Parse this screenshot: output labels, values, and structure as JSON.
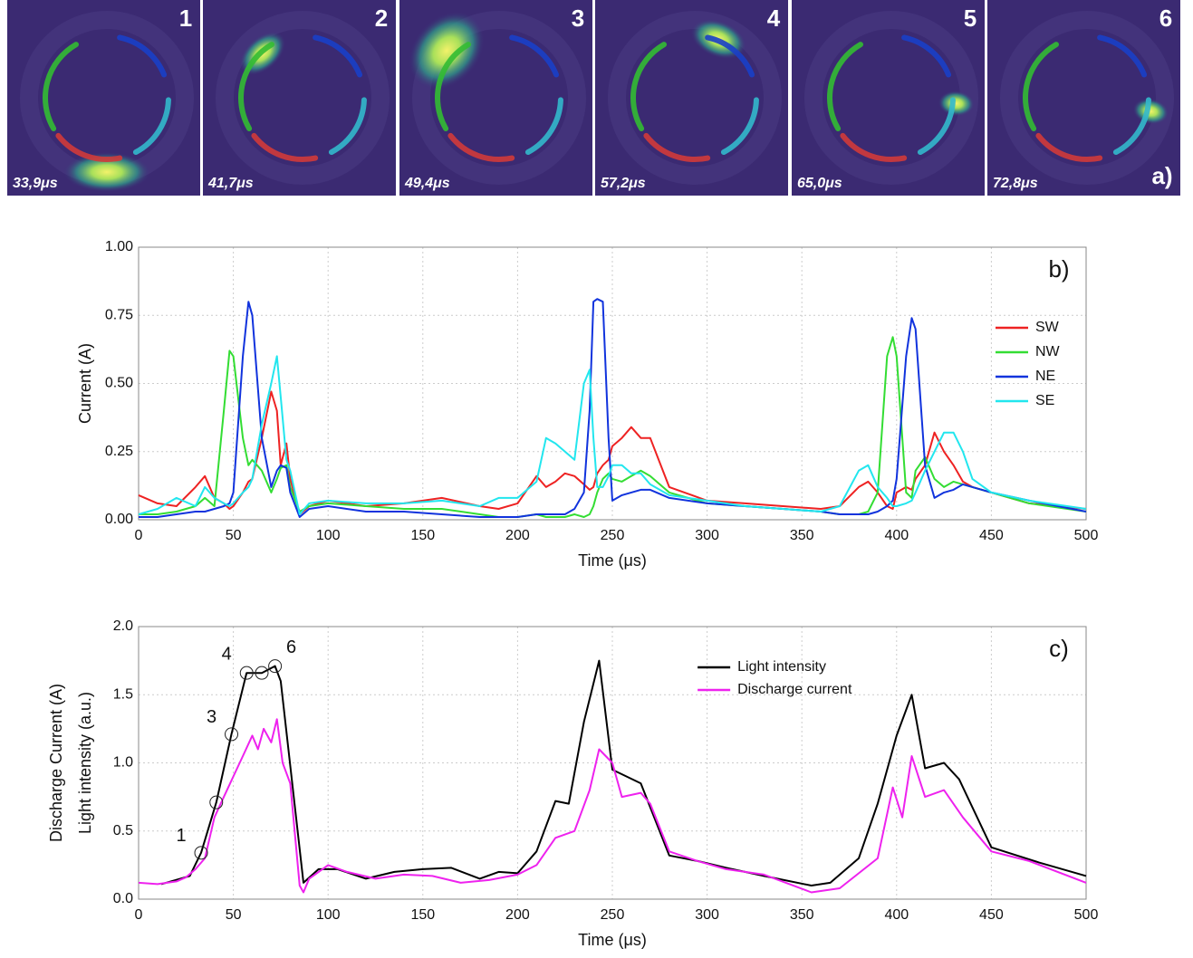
{
  "frames": {
    "label": "a)",
    "items": [
      {
        "number": "1",
        "time": "33,9μs"
      },
      {
        "number": "2",
        "time": "41,7μs"
      },
      {
        "number": "3",
        "time": "49,4μs"
      },
      {
        "number": "4",
        "time": "57,2μs"
      },
      {
        "number": "5",
        "time": "65,0μs"
      },
      {
        "number": "6",
        "time": "72,8μs"
      }
    ]
  },
  "chart_data": [
    {
      "type": "line",
      "label": "b)",
      "x_label": "Time (μs)",
      "y_label": "Current (A)",
      "xlim": [
        0,
        500
      ],
      "xticks": [
        0,
        50,
        100,
        150,
        200,
        250,
        300,
        350,
        400,
        450,
        500
      ],
      "ylim": [
        0,
        1
      ],
      "yticks": [
        {
          "value": 0,
          "label": "0.00"
        },
        {
          "value": 0.25,
          "label": "0.25"
        },
        {
          "value": 0.5,
          "label": "0.50"
        },
        {
          "value": 0.75,
          "label": "0.75"
        },
        {
          "value": 1,
          "label": "1.00"
        }
      ],
      "grid": true,
      "legend": "upper right",
      "x": [
        0,
        10,
        20,
        30,
        35,
        40,
        45,
        48,
        50,
        55,
        58,
        60,
        65,
        70,
        73,
        75,
        78,
        80,
        85,
        90,
        100,
        120,
        140,
        160,
        180,
        190,
        200,
        210,
        215,
        220,
        225,
        230,
        235,
        238,
        240,
        242,
        245,
        248,
        250,
        255,
        260,
        265,
        270,
        280,
        300,
        320,
        340,
        360,
        370,
        380,
        385,
        390,
        395,
        398,
        400,
        405,
        408,
        410,
        415,
        420,
        425,
        430,
        435,
        440,
        450,
        470,
        500
      ],
      "series": [
        {
          "name": "SW",
          "color": "#ee2222",
          "values": [
            0.09,
            0.06,
            0.05,
            0.12,
            0.16,
            0.08,
            0.06,
            0.04,
            0.05,
            0.1,
            0.14,
            0.15,
            0.3,
            0.47,
            0.4,
            0.2,
            0.28,
            0.15,
            0.02,
            0.05,
            0.07,
            0.05,
            0.06,
            0.08,
            0.05,
            0.04,
            0.06,
            0.16,
            0.12,
            0.14,
            0.17,
            0.16,
            0.13,
            0.11,
            0.12,
            0.17,
            0.2,
            0.22,
            0.27,
            0.3,
            0.34,
            0.3,
            0.3,
            0.12,
            0.07,
            0.06,
            0.05,
            0.04,
            0.05,
            0.12,
            0.14,
            0.1,
            0.05,
            0.04,
            0.1,
            0.12,
            0.11,
            0.15,
            0.2,
            0.32,
            0.25,
            0.2,
            0.14,
            0.12,
            0.1,
            0.06,
            0.04
          ]
        },
        {
          "name": "NW",
          "color": "#33dd33",
          "values": [
            0.02,
            0.02,
            0.03,
            0.05,
            0.08,
            0.05,
            0.4,
            0.62,
            0.6,
            0.3,
            0.2,
            0.22,
            0.18,
            0.1,
            0.15,
            0.19,
            0.2,
            0.12,
            0.03,
            0.05,
            0.06,
            0.05,
            0.04,
            0.04,
            0.02,
            0.01,
            0.01,
            0.02,
            0.01,
            0.01,
            0.01,
            0.02,
            0.01,
            0.02,
            0.05,
            0.1,
            0.15,
            0.17,
            0.15,
            0.14,
            0.16,
            0.18,
            0.16,
            0.1,
            0.06,
            0.05,
            0.04,
            0.03,
            0.02,
            0.02,
            0.03,
            0.1,
            0.6,
            0.67,
            0.6,
            0.1,
            0.08,
            0.18,
            0.23,
            0.15,
            0.12,
            0.14,
            0.13,
            0.12,
            0.1,
            0.06,
            0.03
          ]
        },
        {
          "name": "NE",
          "color": "#1133dd",
          "values": [
            0.01,
            0.01,
            0.02,
            0.03,
            0.03,
            0.04,
            0.05,
            0.06,
            0.1,
            0.6,
            0.8,
            0.75,
            0.3,
            0.12,
            0.18,
            0.2,
            0.19,
            0.1,
            0.01,
            0.04,
            0.05,
            0.03,
            0.03,
            0.02,
            0.01,
            0.01,
            0.01,
            0.02,
            0.02,
            0.02,
            0.02,
            0.04,
            0.1,
            0.4,
            0.8,
            0.81,
            0.8,
            0.3,
            0.07,
            0.09,
            0.1,
            0.11,
            0.11,
            0.08,
            0.06,
            0.05,
            0.04,
            0.03,
            0.02,
            0.02,
            0.02,
            0.03,
            0.05,
            0.07,
            0.15,
            0.6,
            0.74,
            0.7,
            0.2,
            0.08,
            0.1,
            0.11,
            0.13,
            0.12,
            0.1,
            0.07,
            0.03
          ]
        },
        {
          "name": "SE",
          "color": "#22e6ee",
          "values": [
            0.02,
            0.04,
            0.08,
            0.05,
            0.12,
            0.08,
            0.06,
            0.05,
            0.06,
            0.1,
            0.12,
            0.15,
            0.35,
            0.5,
            0.6,
            0.45,
            0.22,
            0.18,
            0.02,
            0.06,
            0.07,
            0.06,
            0.06,
            0.07,
            0.05,
            0.08,
            0.08,
            0.14,
            0.3,
            0.28,
            0.25,
            0.22,
            0.5,
            0.55,
            0.3,
            0.12,
            0.12,
            0.16,
            0.2,
            0.2,
            0.17,
            0.17,
            0.13,
            0.09,
            0.07,
            0.05,
            0.04,
            0.03,
            0.05,
            0.18,
            0.2,
            0.12,
            0.08,
            0.05,
            0.05,
            0.06,
            0.07,
            0.1,
            0.18,
            0.25,
            0.32,
            0.32,
            0.25,
            0.15,
            0.1,
            0.07,
            0.04
          ]
        }
      ]
    },
    {
      "type": "line",
      "label": "c)",
      "x_label": "Time (μs)",
      "y_label": [
        "Discharge Current (A)",
        "Light intensity (a.u.)"
      ],
      "xlim": [
        0,
        500
      ],
      "xticks": [
        0,
        50,
        100,
        150,
        200,
        250,
        300,
        350,
        400,
        450,
        500
      ],
      "ylim": [
        0,
        2
      ],
      "yticks": [
        {
          "value": 0,
          "label": "0.0"
        },
        {
          "value": 0.5,
          "label": "0.5"
        },
        {
          "value": 1,
          "label": "1.0"
        },
        {
          "value": 1.5,
          "label": "1.5"
        },
        {
          "value": 2,
          "label": "2.0"
        }
      ],
      "grid": true,
      "legend": "upper center",
      "series": [
        {
          "name": "Light intensity",
          "color": "#000000",
          "x": [
            12,
            27,
            33,
            41,
            49,
            57,
            65,
            72,
            75,
            87,
            95,
            105,
            120,
            135,
            150,
            165,
            180,
            190,
            200,
            210,
            220,
            227,
            235,
            243,
            250,
            265,
            280,
            295,
            310,
            330,
            355,
            365,
            380,
            390,
            400,
            408,
            415,
            425,
            433,
            450,
            475,
            500
          ],
          "values": [
            0.11,
            0.17,
            0.34,
            0.71,
            1.21,
            1.66,
            1.66,
            1.71,
            1.6,
            0.12,
            0.22,
            0.22,
            0.15,
            0.2,
            0.22,
            0.23,
            0.15,
            0.2,
            0.19,
            0.35,
            0.72,
            0.7,
            1.3,
            1.75,
            0.95,
            0.85,
            0.32,
            0.28,
            0.23,
            0.17,
            0.1,
            0.12,
            0.3,
            0.7,
            1.2,
            1.5,
            0.96,
            1.0,
            0.88,
            0.38,
            0.27,
            0.17
          ]
        },
        {
          "name": "Discharge current",
          "color": "#ee22ee",
          "x": [
            0,
            10,
            20,
            25,
            30,
            35,
            40,
            45,
            50,
            55,
            60,
            63,
            66,
            70,
            73,
            76,
            80,
            85,
            87,
            90,
            100,
            110,
            125,
            140,
            155,
            170,
            185,
            200,
            210,
            220,
            230,
            238,
            243,
            250,
            255,
            265,
            270,
            280,
            295,
            310,
            330,
            355,
            370,
            390,
            398,
            403,
            408,
            415,
            425,
            435,
            450,
            470,
            500
          ],
          "values": [
            0.12,
            0.11,
            0.13,
            0.16,
            0.22,
            0.3,
            0.6,
            0.75,
            0.9,
            1.05,
            1.2,
            1.1,
            1.25,
            1.15,
            1.32,
            1.0,
            0.85,
            0.1,
            0.05,
            0.15,
            0.25,
            0.2,
            0.15,
            0.18,
            0.17,
            0.12,
            0.14,
            0.18,
            0.25,
            0.45,
            0.5,
            0.8,
            1.1,
            1.0,
            0.75,
            0.78,
            0.7,
            0.35,
            0.28,
            0.22,
            0.18,
            0.05,
            0.08,
            0.3,
            0.82,
            0.6,
            1.05,
            0.75,
            0.8,
            0.6,
            0.35,
            0.28,
            0.12
          ]
        }
      ],
      "markers": {
        "x": [
          33,
          41,
          49,
          57,
          65,
          72
        ],
        "values": [
          0.34,
          0.71,
          1.21,
          1.66,
          1.66,
          1.71
        ],
        "labels": [
          "1",
          null,
          "3",
          "4",
          null,
          "6"
        ]
      }
    }
  ]
}
